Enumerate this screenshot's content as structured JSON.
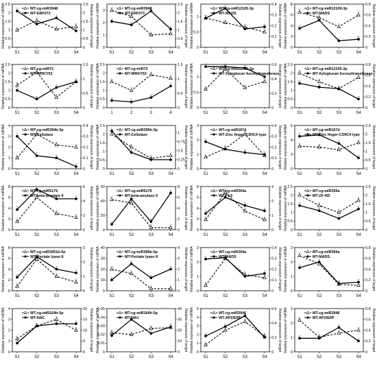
{
  "figure": {
    "left_axis_label": "Relative expression of miRNA",
    "right_axis_label": "Relative expression of target"
  },
  "chart_data": [
    {
      "type": "line",
      "x": [
        "S1",
        "S2",
        "S3",
        "S4"
      ],
      "ylim": [
        0,
        2.5
      ],
      "y2lim": [
        0,
        2.5
      ],
      "series": [
        {
          "name": "WT-cg-miR3948",
          "style": "dashed",
          "marker": "triangle",
          "axis": "right",
          "values": [
            1.0,
            1.55,
            1.05,
            1.2
          ]
        },
        {
          "name": "WT-ERF073",
          "style": "solid",
          "marker": "circle",
          "axis": "left",
          "values": [
            2.1,
            1.35,
            1.7,
            0.95
          ]
        }
      ]
    },
    {
      "type": "line",
      "x": [
        "S1",
        "S2",
        "S3",
        "S4"
      ],
      "ylim": [
        0,
        3.5
      ],
      "y2lim": [
        0,
        2.5
      ],
      "series": [
        {
          "name": "MT-cg-miR3948",
          "style": "dashed",
          "marker": "triangle",
          "axis": "left",
          "values": [
            3.0,
            2.5,
            1.0,
            1.1
          ]
        },
        {
          "name": "MT-ERF073",
          "style": "solid",
          "marker": "circle",
          "axis": "right",
          "values": [
            1.5,
            1.3,
            2.1,
            1.05
          ]
        }
      ]
    },
    {
      "type": "line",
      "x": [
        "S1",
        "S2",
        "S3",
        "S4"
      ],
      "ylim": [
        0,
        1.4
      ],
      "y2lim": [
        0,
        0.4
      ],
      "series": [
        {
          "name": "WT-cg-miR12105-3p",
          "style": "dashed",
          "marker": "triangle",
          "axis": "left",
          "values": [
            0.95,
            0.8,
            0.65,
            0.5
          ]
        },
        {
          "name": "WT-MADS",
          "style": "solid",
          "marker": "circle",
          "axis": "right",
          "values": [
            0.27,
            0.36,
            0.17,
            0.19
          ]
        }
      ]
    },
    {
      "type": "line",
      "x": [
        "S1",
        "S2",
        "S3",
        "S4"
      ],
      "ylim": [
        0,
        8
      ],
      "y2lim": [
        0,
        0.8
      ],
      "series": [
        {
          "name": "MT-cg-miR12109-3p",
          "style": "dashed",
          "marker": "triangle",
          "axis": "left",
          "values": [
            6.5,
            5.5,
            3.8,
            6.0
          ]
        },
        {
          "name": "MT-MADS",
          "style": "solid",
          "marker": "circle",
          "axis": "right",
          "values": [
            0.35,
            0.5,
            0.12,
            0.15
          ]
        }
      ]
    },
    {
      "type": "line",
      "x": [
        "S1",
        "S2",
        "S3",
        "S4"
      ],
      "ylim": [
        0,
        2.5
      ],
      "y2lim": [
        0,
        1.5
      ],
      "series": [
        {
          "name": "WT-cg-miR72",
          "style": "dashed",
          "marker": "triangle",
          "axis": "left",
          "values": [
            1.3,
            2.05,
            0.6,
            1.5
          ]
        },
        {
          "name": "WT-WRKY53",
          "style": "solid",
          "marker": "circle",
          "axis": "right",
          "values": [
            0.6,
            0.3,
            0.7,
            0.9
          ]
        }
      ]
    },
    {
      "type": "line",
      "x": [
        "1",
        "2",
        "3",
        "4"
      ],
      "ylim": [
        0,
        2.5
      ],
      "y2lim": [
        0,
        1.5
      ],
      "series": [
        {
          "name": "MT-cg-miR72",
          "style": "dashed",
          "marker": "triangle",
          "axis": "left",
          "values": [
            1.5,
            1.0,
            1.9,
            1.7
          ]
        },
        {
          "name": "MT-WRKY53",
          "style": "solid",
          "marker": "circle",
          "axis": "right",
          "values": [
            0.25,
            0.2,
            0.35,
            0.75
          ]
        }
      ]
    },
    {
      "type": "line",
      "x": [
        "S1",
        "S2",
        "S3",
        "S4"
      ],
      "ylim": [
        0,
        1.4
      ],
      "y2lim": [
        0,
        0.6
      ],
      "series": [
        {
          "name": "WT-cg-miR12105-3p",
          "style": "dashed",
          "marker": "triangle",
          "axis": "left",
          "values": [
            0.6,
            1.25,
            0.65,
            0.85
          ]
        },
        {
          "name": "WT-Xyloglucan fucosyltransferase",
          "style": "solid",
          "marker": "circle",
          "axis": "right",
          "values": [
            0.57,
            0.57,
            0.55,
            0.43
          ]
        }
      ]
    },
    {
      "type": "line",
      "x": [
        "S1",
        "S2",
        "S3",
        "S4"
      ],
      "ylim": [
        0,
        2.5
      ],
      "y2lim": [
        0,
        0.8
      ],
      "series": [
        {
          "name": "MT-cg-miR12105-3p",
          "style": "dashed",
          "marker": "triangle",
          "axis": "left",
          "values": [
            2.0,
            1.5,
            1.1,
            1.75
          ]
        },
        {
          "name": "MT-Xyloglucan fucosyltransferase",
          "style": "solid",
          "marker": "circle",
          "axis": "right",
          "values": [
            0.45,
            0.38,
            0.35,
            0.16
          ]
        }
      ]
    },
    {
      "type": "line",
      "x": [
        "S1",
        "S2",
        "S3",
        "S4"
      ],
      "ylim": [
        0,
        4
      ],
      "y2lim": [
        0,
        0.4
      ],
      "series": [
        {
          "name": "WT-cg-miR394b-3p",
          "style": "dashed",
          "marker": "triangle",
          "axis": "right",
          "values": [
            0.1,
            0.32,
            0.22,
            0.2
          ]
        },
        {
          "name": "WT-Cellulase",
          "style": "solid",
          "marker": "circle",
          "axis": "left",
          "values": [
            3.0,
            1.2,
            1.0,
            0.2
          ]
        }
      ]
    },
    {
      "type": "line",
      "x": [
        "S1",
        "S2",
        "S3",
        "S4"
      ],
      "ylim": [
        0,
        2.5
      ],
      "y2lim": [
        0,
        1.2
      ],
      "series": [
        {
          "name": "MT-cg-miR395b-3p",
          "style": "dashed",
          "marker": "triangle",
          "axis": "left",
          "values": [
            2.0,
            1.25,
            0.6,
            0.75
          ]
        },
        {
          "name": "MT-Cellulase",
          "style": "solid",
          "marker": "circle",
          "axis": "right",
          "values": [
            1.05,
            0.45,
            0.25,
            0.25
          ]
        }
      ]
    },
    {
      "type": "line",
      "x": [
        "S1",
        "S2",
        "S3",
        "S4"
      ],
      "ylim": [
        0,
        3
      ],
      "y2lim": [
        0,
        0.4
      ],
      "series": [
        {
          "name": "WT-cg-miR167d",
          "style": "dashed",
          "marker": "triangle",
          "axis": "left",
          "values": [
            0.8,
            1.4,
            2.4,
            0.9
          ]
        },
        {
          "name": "WT-Zinc finger-C3HC4 type",
          "style": "solid",
          "marker": "circle",
          "axis": "right",
          "values": [
            0.25,
            0.18,
            0.15,
            0.13
          ]
        }
      ]
    },
    {
      "type": "line",
      "x": [
        "S1",
        "S2",
        "S3",
        "S4"
      ],
      "ylim": [
        0,
        6
      ],
      "y2lim": [
        0,
        2.5
      ],
      "series": [
        {
          "name": "MT-cg-miR167d",
          "style": "dashed",
          "marker": "triangle",
          "axis": "right",
          "values": [
            1.3,
            1.25,
            1.1,
            1.5
          ]
        },
        {
          "name": "MT-Zinc finger-C3HC4 type",
          "style": "solid",
          "marker": "circle",
          "axis": "left",
          "values": [
            4.5,
            4.7,
            3.5,
            1.5
          ]
        }
      ]
    },
    {
      "type": "line",
      "x": [
        "S1",
        "S2",
        "S3",
        "S4"
      ],
      "ylim": [
        0,
        8
      ],
      "y2lim": [
        0,
        6
      ],
      "series": [
        {
          "name": "WT-cg-miR5179",
          "style": "dashed",
          "marker": "triangle",
          "axis": "left",
          "values": [
            1.5,
            6.0,
            3.0,
            2.3
          ]
        },
        {
          "name": "WT-beta-amylase 9",
          "style": "solid",
          "marker": "circle",
          "axis": "right",
          "values": [
            2.8,
            5.6,
            4.3,
            4.3
          ]
        }
      ]
    },
    {
      "type": "line",
      "x": [
        "S1",
        "S2",
        "S3",
        "S4"
      ],
      "ylim": [
        0,
        60
      ],
      "y2lim": [
        0,
        8
      ],
      "series": [
        {
          "name": "MT-cg-miR5179",
          "style": "dashed",
          "marker": "triangle",
          "axis": "left",
          "values": [
            42,
            37,
            3,
            3
          ]
        },
        {
          "name": "MT-beta-amylase 9",
          "style": "solid",
          "marker": "circle",
          "axis": "right",
          "values": [
            1.0,
            5.7,
            1.5,
            6.8
          ]
        }
      ]
    },
    {
      "type": "line",
      "x": [
        "S1",
        "S2",
        "S3",
        "S4"
      ],
      "ylim": [
        0,
        8
      ],
      "y2lim": [
        0,
        3
      ],
      "series": [
        {
          "name": "WT-cg-miR394a",
          "style": "dashed",
          "marker": "triangle",
          "axis": "right",
          "values": [
            0.7,
            2.6,
            1.3,
            0.7
          ]
        },
        {
          "name": "WT-PLS",
          "style": "solid",
          "marker": "circle",
          "axis": "left",
          "values": [
            3.0,
            6.0,
            4.5,
            3.5
          ]
        }
      ]
    },
    {
      "type": "line",
      "x": [
        "S1",
        "S2",
        "S3",
        "S4"
      ],
      "ylim": [
        0,
        2.5
      ],
      "y2lim": [
        0,
        2.5
      ],
      "series": [
        {
          "name": "MT-cg-miR394a",
          "style": "dashed",
          "marker": "triangle",
          "axis": "left",
          "values": [
            2.0,
            1.4,
            1.0,
            1.7
          ]
        },
        {
          "name": "MT-ZF-HD",
          "style": "solid",
          "marker": "circle",
          "axis": "right",
          "values": [
            1.4,
            1.1,
            0.65,
            1.2
          ]
        }
      ]
    },
    {
      "type": "line",
      "x": [
        "S1",
        "S2",
        "S3",
        "S4"
      ],
      "ylim": [
        0,
        8
      ],
      "y2lim": [
        0,
        3.0
      ],
      "series": [
        {
          "name": "WT-cg-miR3951b-5p",
          "style": "dashed",
          "marker": "triangle",
          "axis": "right",
          "values": [
            0.3,
            2.2,
            1.0,
            0.6
          ]
        },
        {
          "name": "WT-Pectate lyase 8",
          "style": "solid",
          "marker": "circle",
          "axis": "left",
          "values": [
            2.5,
            6.3,
            4.0,
            3.3
          ]
        }
      ]
    },
    {
      "type": "line",
      "x": [
        "S1",
        "S2",
        "S3",
        "S4"
      ],
      "ylim": [
        0,
        40
      ],
      "y2lim": [
        0,
        4
      ],
      "series": [
        {
          "name": "MT-cg-miR395b-5p",
          "style": "dashed",
          "marker": "triangle",
          "axis": "left",
          "values": [
            20,
            16,
            2,
            2
          ]
        },
        {
          "name": "MT-Pectate lyase 8",
          "style": "solid",
          "marker": "circle",
          "axis": "right",
          "values": [
            1.0,
            2.5,
            1.2,
            2.0
          ]
        }
      ]
    },
    {
      "type": "line",
      "x": [
        "S1",
        "S2",
        "S3",
        "S4"
      ],
      "ylim": [
        0,
        3
      ],
      "y2lim": [
        0,
        0.4
      ],
      "series": [
        {
          "name": "WT-cg-miR394a",
          "style": "dashed",
          "marker": "triangle",
          "axis": "right",
          "values": [
            0.05,
            0.3,
            0.15,
            0.12
          ]
        },
        {
          "name": "WT-MADS",
          "style": "solid",
          "marker": "circle",
          "axis": "left",
          "values": [
            2.2,
            2.3,
            1.0,
            1.2
          ]
        }
      ]
    },
    {
      "type": "line",
      "x": [
        "S1",
        "S2",
        "S3",
        "S4"
      ],
      "ylim": [
        0,
        3
      ],
      "y2lim": [
        0,
        0.8
      ],
      "series": [
        {
          "name": "MT-cg-miR394a",
          "style": "dashed",
          "marker": "triangle",
          "axis": "right",
          "values": [
            0.65,
            0.5,
            0.12,
            0.1
          ]
        },
        {
          "name": "MT-MADS",
          "style": "solid",
          "marker": "circle",
          "axis": "left",
          "values": [
            1.6,
            2.0,
            0.5,
            0.6
          ]
        }
      ]
    },
    {
      "type": "line",
      "x": [
        "S1",
        "S2",
        "S3",
        "S4"
      ],
      "ylim": [
        0,
        4
      ],
      "y2lim": [
        0,
        20
      ],
      "series": [
        {
          "name": "WT-cg-miR164h-5p",
          "style": "dashed",
          "marker": "triangle",
          "axis": "left",
          "values": [
            1.2,
            2.4,
            3.0,
            2.0
          ]
        },
        {
          "name": "WT-NAC",
          "style": "solid",
          "marker": "circle",
          "axis": "right",
          "values": [
            4,
            12,
            13,
            13
          ]
        }
      ]
    },
    {
      "type": "line",
      "x": [
        "S1",
        "S2",
        "S3",
        "S4"
      ],
      "ylim": [
        0,
        0.05
      ],
      "y2lim": [
        0,
        40
      ],
      "series": [
        {
          "name": "MT-cg-miR164h-5p",
          "style": "dashed",
          "marker": "triangle",
          "axis": "left",
          "values": [
            0.022,
            0.02,
            0.027,
            0.028
          ]
        },
        {
          "name": "MT-NAC",
          "style": "solid",
          "marker": "circle",
          "axis": "right",
          "values": [
            15,
            30,
            17,
            23
          ]
        }
      ]
    },
    {
      "type": "line",
      "x": [
        "S1",
        "S2",
        "S3",
        "S4"
      ],
      "ylim": [
        0,
        5
      ],
      "y2lim": [
        0,
        0.6
      ],
      "series": [
        {
          "name": "WT-cg-miR3946",
          "style": "dashed",
          "marker": "triangle",
          "axis": "left",
          "values": [
            0.8,
            2.5,
            3.5,
            1.8
          ]
        },
        {
          "name": "WT-AP2/ERF",
          "style": "solid",
          "marker": "circle",
          "axis": "right",
          "values": [
            0.22,
            0.35,
            0.5,
            0.2
          ]
        }
      ]
    },
    {
      "type": "line",
      "x": [
        "S1",
        "S2",
        "S3",
        "S4"
      ],
      "ylim": [
        0,
        3
      ],
      "y2lim": [
        0,
        0.8
      ],
      "series": [
        {
          "name": "MT-cg-miR3946",
          "style": "dashed",
          "marker": "triangle",
          "axis": "left",
          "values": [
            2.2,
            1.0,
            1.3,
            1.5
          ]
        },
        {
          "name": "MT-AP2/ERF",
          "style": "solid",
          "marker": "circle",
          "axis": "right",
          "values": [
            0.25,
            0.25,
            0.45,
            0.2
          ]
        }
      ]
    }
  ]
}
